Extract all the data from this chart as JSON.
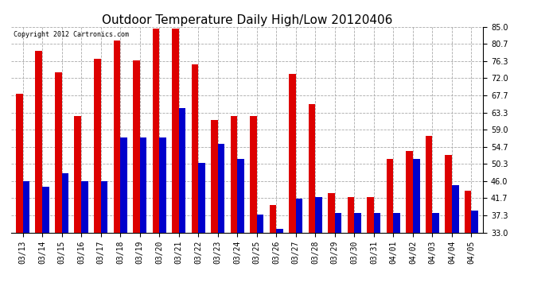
{
  "title": "Outdoor Temperature Daily High/Low 20120406",
  "copyright": "Copyright 2012 Cartronics.com",
  "dates": [
    "03/13",
    "03/14",
    "03/15",
    "03/16",
    "03/17",
    "03/18",
    "03/19",
    "03/20",
    "03/21",
    "03/22",
    "03/23",
    "03/24",
    "03/25",
    "03/26",
    "03/27",
    "03/28",
    "03/29",
    "03/30",
    "03/31",
    "04/01",
    "04/02",
    "04/03",
    "04/04",
    "04/05"
  ],
  "highs": [
    68.0,
    79.0,
    73.5,
    62.5,
    77.0,
    81.5,
    76.5,
    84.5,
    84.5,
    75.5,
    61.5,
    62.5,
    62.5,
    40.0,
    73.0,
    65.5,
    43.0,
    42.0,
    42.0,
    51.5,
    53.5,
    57.5,
    52.5,
    43.5
  ],
  "lows": [
    46.0,
    44.5,
    48.0,
    46.0,
    46.0,
    57.0,
    57.0,
    57.0,
    64.5,
    50.5,
    55.5,
    51.5,
    37.5,
    34.0,
    41.5,
    42.0,
    38.0,
    38.0,
    38.0,
    38.0,
    51.5,
    38.0,
    45.0,
    38.5
  ],
  "high_color": "#dd0000",
  "low_color": "#0000cc",
  "bg_color": "#ffffff",
  "yticks": [
    33.0,
    37.3,
    41.7,
    46.0,
    50.3,
    54.7,
    59.0,
    63.3,
    67.7,
    72.0,
    76.3,
    80.7,
    85.0
  ],
  "ylim": [
    33.0,
    85.0
  ],
  "ybase": 33.0,
  "grid_color": "#aaaaaa",
  "bar_width": 0.35,
  "title_fontsize": 11,
  "tick_fontsize": 7,
  "copyright_fontsize": 6
}
